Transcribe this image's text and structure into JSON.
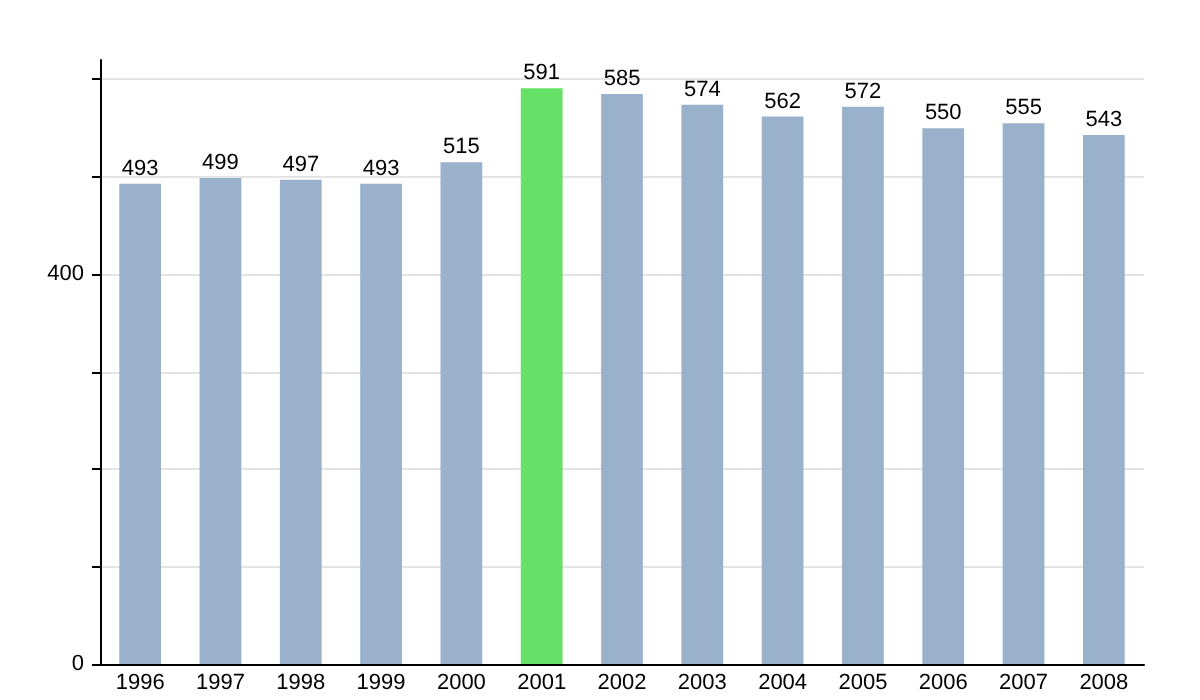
{
  "chart_data": {
    "type": "bar",
    "categories": [
      "1996",
      "1997",
      "1998",
      "1999",
      "2000",
      "2001",
      "2002",
      "2003",
      "2004",
      "2005",
      "2006",
      "2007",
      "2008"
    ],
    "values": [
      493,
      499,
      497,
      493,
      515,
      591,
      585,
      574,
      562,
      572,
      550,
      555,
      543
    ],
    "colors": [
      "#9ab1cb",
      "#9ab1cb",
      "#9ab1cb",
      "#9ab1cb",
      "#9ab1cb",
      "#66e066",
      "#9ab1cb",
      "#9ab1cb",
      "#9ab1cb",
      "#9ab1cb",
      "#9ab1cb",
      "#9ab1cb",
      "#9ab1cb"
    ],
    "ylim": [
      0,
      620
    ],
    "yticks": [
      0,
      {
        "value": 100,
        "label": null
      },
      {
        "value": 200,
        "label": null
      },
      {
        "value": 300,
        "label": null
      },
      400,
      {
        "value": 500,
        "label": null
      },
      {
        "value": 600,
        "label": null
      }
    ],
    "grid": "y",
    "data_labels": true
  }
}
